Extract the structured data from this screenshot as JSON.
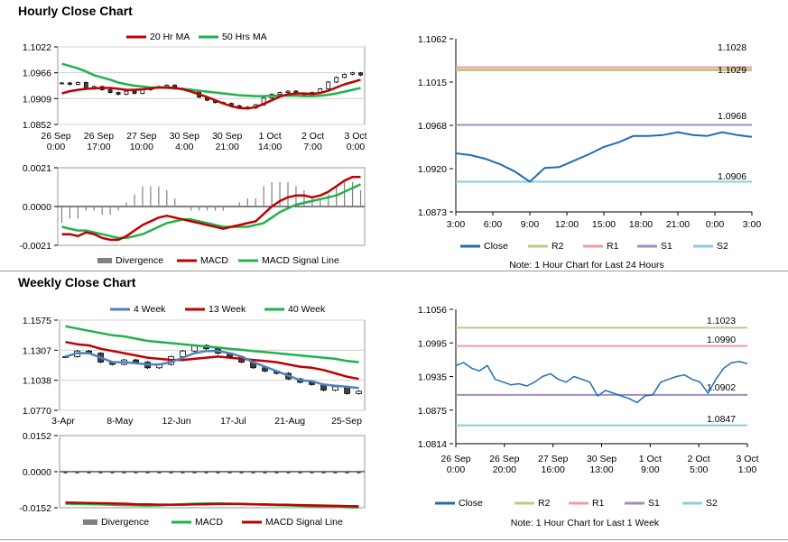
{
  "hourly_title": "Hourly Close Chart",
  "weekly_title": "Weekly Close Chart",
  "colors": {
    "ma20": "#c00000",
    "ma50": "#22b14c",
    "divergence": "#808080",
    "close": "#1f6eb4",
    "r2": "#c9c48a",
    "r1": "#e8a0a0",
    "s1": "#a28cc0",
    "s2": "#8ecbe0",
    "w4": "#4f81bd",
    "w13": "#c00000",
    "w40": "#22b14c"
  },
  "chart_data": [
    {
      "id": "hourly_price",
      "type": "candlestick",
      "legend": [
        "20 Hr MA",
        "50 Hrs MA"
      ],
      "y_ticks": [
        "1.1022",
        "1.0966",
        "1.0909",
        "1.0852"
      ],
      "ylim": [
        1.0852,
        1.1022
      ],
      "x_ticks": [
        "26 Sep\n0:00",
        "26 Sep\n17:00",
        "27 Sep\n10:00",
        "30 Sep\n4:00",
        "30 Sep\n21:00",
        "1 Oct\n14:00",
        "2 Oct\n7:00",
        "3 Oct\n0:00"
      ],
      "close": [
        1.0943,
        1.094,
        1.0944,
        1.093,
        1.0935,
        1.0928,
        1.0922,
        1.0918,
        1.0925,
        1.092,
        1.0928,
        1.0933,
        1.0935,
        1.0938,
        1.093,
        1.0929,
        1.0925,
        1.0912,
        1.0905,
        1.09,
        1.0898,
        1.0893,
        1.089,
        1.0888,
        1.0895,
        1.091,
        1.0918,
        1.0922,
        1.0925,
        1.092,
        1.0916,
        1.0922,
        1.093,
        1.0945,
        1.0955,
        1.0962,
        1.0965,
        1.096
      ],
      "ma20": [
        1.092,
        1.0925,
        1.0928,
        1.093,
        1.0931,
        1.0932,
        1.0932,
        1.093,
        1.0928,
        1.0928,
        1.0929,
        1.0931,
        1.0933,
        1.0933,
        1.0932,
        1.0929,
        1.0924,
        1.0918,
        1.0912,
        1.0905,
        1.0898,
        1.0892,
        1.0888,
        1.0887,
        1.089,
        1.0897,
        1.0905,
        1.0913,
        1.0918,
        1.092,
        1.092,
        1.0919,
        1.0921,
        1.0926,
        1.0933,
        1.094,
        1.0945,
        1.095
      ],
      "ma50": [
        1.0985,
        1.098,
        1.0975,
        1.0968,
        1.096,
        1.0955,
        1.095,
        1.0944,
        1.094,
        1.0937,
        1.0935,
        1.0933,
        1.0933,
        1.0932,
        1.0931,
        1.093,
        1.0928,
        1.0926,
        1.0924,
        1.0922,
        1.092,
        1.0918,
        1.0916,
        1.0915,
        1.0914,
        1.0914,
        1.0915,
        1.0915,
        1.0915,
        1.0915,
        1.0914,
        1.0914,
        1.0915,
        1.0917,
        1.092,
        1.0924,
        1.0928,
        1.0932
      ]
    },
    {
      "id": "hourly_macd",
      "type": "macd",
      "legend": [
        "Divergence",
        "MACD",
        "MACD Signal Line"
      ],
      "y_ticks": [
        "0.0021",
        "0.0000",
        "-0.0021"
      ],
      "ylim": [
        -0.0021,
        0.0021
      ],
      "macd": [
        -0.0015,
        -0.0015,
        -0.0016,
        -0.0014,
        -0.0015,
        -0.0017,
        -0.0018,
        -0.0018,
        -0.0016,
        -0.0013,
        -0.001,
        -0.0008,
        -0.0006,
        -0.0005,
        -0.0006,
        -0.0007,
        -0.0008,
        -0.0009,
        -0.001,
        -0.0011,
        -0.0012,
        -0.0011,
        -0.001,
        -0.0009,
        -0.0008,
        -0.0004,
        0.0,
        0.0003,
        0.0005,
        0.0006,
        0.0006,
        0.0005,
        0.0006,
        0.0008,
        0.0011,
        0.0014,
        0.0016,
        0.0016
      ],
      "signal": [
        -0.0011,
        -0.0012,
        -0.0013,
        -0.0013,
        -0.0014,
        -0.0015,
        -0.0016,
        -0.0017,
        -0.0017,
        -0.0016,
        -0.0015,
        -0.0013,
        -0.0011,
        -0.0009,
        -0.0008,
        -0.0007,
        -0.0007,
        -0.0008,
        -0.0009,
        -0.001,
        -0.0011,
        -0.0011,
        -0.0011,
        -0.0011,
        -0.001,
        -0.0009,
        -0.0006,
        -0.0003,
        -0.0001,
        0.0001,
        0.0002,
        0.0003,
        0.0004,
        0.0005,
        0.0006,
        0.0008,
        0.001,
        0.0012
      ]
    },
    {
      "id": "hourly_levels",
      "type": "line",
      "y_ticks": [
        "1.1062",
        "1.1015",
        "1.0968",
        "1.0920",
        "1.0873"
      ],
      "ylim": [
        1.0873,
        1.1062
      ],
      "x_ticks": [
        "3:00",
        "6:00",
        "9:00",
        "12:00",
        "15:00",
        "18:00",
        "21:00",
        "0:00",
        "3:00"
      ],
      "legend": [
        "Close",
        "R2",
        "R1",
        "S1",
        "S2"
      ],
      "levels": {
        "r2": 1.1028,
        "r1": 1.1029,
        "s1": 1.0968,
        "s2": 1.0906
      },
      "level_labels": {
        "r2": "1.1028",
        "r1": "1.1029",
        "s1": "1.0968",
        "s2": "1.0906"
      },
      "note": "Note: 1 Hour Chart for Last 24 Hours",
      "close": [
        1.0937,
        1.0935,
        1.0931,
        1.0925,
        1.0917,
        1.0906,
        1.0921,
        1.0922,
        1.0929,
        1.0936,
        1.0944,
        1.0949,
        1.0956,
        1.0956,
        1.0957,
        1.096,
        1.0957,
        1.0956,
        1.096,
        1.0957,
        1.0955
      ]
    },
    {
      "id": "weekly_price",
      "type": "candlestick",
      "legend": [
        "4 Week",
        "13 Week",
        "40 Week"
      ],
      "y_ticks": [
        "1.1575",
        "1.1307",
        "1.1038",
        "1.0770"
      ],
      "ylim": [
        1.077,
        1.1575
      ],
      "x_ticks": [
        "3-Apr",
        "8-May",
        "12-Jun",
        "17-Jul",
        "21-Aug",
        "25-Sep"
      ],
      "close": [
        1.125,
        1.13,
        1.128,
        1.12,
        1.118,
        1.122,
        1.12,
        1.115,
        1.118,
        1.125,
        1.13,
        1.135,
        1.132,
        1.128,
        1.125,
        1.12,
        1.115,
        1.112,
        1.11,
        1.105,
        1.102,
        1.1,
        1.095,
        1.098,
        1.092,
        1.094
      ],
      "w4": [
        1.125,
        1.128,
        1.128,
        1.124,
        1.12,
        1.12,
        1.119,
        1.118,
        1.118,
        1.12,
        1.124,
        1.128,
        1.13,
        1.13,
        1.128,
        1.125,
        1.12,
        1.116,
        1.112,
        1.108,
        1.104,
        1.103,
        1.1,
        1.099,
        1.098,
        1.097
      ],
      "w13": [
        1.138,
        1.136,
        1.135,
        1.132,
        1.13,
        1.128,
        1.126,
        1.124,
        1.123,
        1.122,
        1.122,
        1.123,
        1.124,
        1.125,
        1.124,
        1.123,
        1.122,
        1.121,
        1.12,
        1.118,
        1.116,
        1.115,
        1.113,
        1.11,
        1.107,
        1.105
      ],
      "w40": [
        1.152,
        1.15,
        1.148,
        1.146,
        1.144,
        1.143,
        1.141,
        1.139,
        1.138,
        1.137,
        1.136,
        1.135,
        1.134,
        1.133,
        1.132,
        1.131,
        1.13,
        1.129,
        1.128,
        1.127,
        1.126,
        1.125,
        1.124,
        1.123,
        1.121,
        1.12
      ]
    },
    {
      "id": "weekly_macd",
      "type": "macd",
      "legend": [
        "Divergence",
        "MACD",
        "MACD Signal Line"
      ],
      "y_ticks": [
        "0.0152",
        "0.0000",
        "-0.0152"
      ],
      "ylim": [
        -0.0152,
        0.0152
      ],
      "macd": [
        -0.0135,
        -0.0136,
        -0.0137,
        -0.0138,
        -0.014,
        -0.0141,
        -0.0142,
        -0.0143,
        -0.0142,
        -0.014,
        -0.0137,
        -0.0135,
        -0.0134,
        -0.0134,
        -0.0135,
        -0.0136,
        -0.0138,
        -0.014,
        -0.0141,
        -0.0142,
        -0.0144,
        -0.0145,
        -0.0147,
        -0.0148,
        -0.015,
        -0.0151
      ],
      "signal": [
        -0.013,
        -0.0131,
        -0.0132,
        -0.0133,
        -0.0134,
        -0.0135,
        -0.0137,
        -0.0138,
        -0.0139,
        -0.0139,
        -0.0139,
        -0.0138,
        -0.0137,
        -0.0136,
        -0.0136,
        -0.0136,
        -0.0137,
        -0.0138,
        -0.0139,
        -0.014,
        -0.0141,
        -0.0142,
        -0.0143,
        -0.0144,
        -0.0145,
        -0.0146
      ]
    },
    {
      "id": "weekly_levels",
      "type": "line",
      "y_ticks": [
        "1.1056",
        "1.0995",
        "1.0935",
        "1.0875",
        "1.0814"
      ],
      "ylim": [
        1.0814,
        1.1056
      ],
      "x_ticks": [
        "26 Sep\n0:00",
        "26 Sep\n20:00",
        "27 Sep\n16:00",
        "30 Sep\n13:00",
        "1 Oct\n9:00",
        "2 Oct\n5:00",
        "3 Oct\n1:00"
      ],
      "legend": [
        "Close",
        "R2",
        "R1",
        "S1",
        "S2"
      ],
      "levels": {
        "r2": 1.1023,
        "r1": 1.099,
        "s1": 1.0902,
        "s2": 1.0847
      },
      "level_labels": {
        "r2": "1.1023",
        "r1": "1.0990",
        "s1": "1.0902",
        "s2": "1.0847"
      },
      "note": "Note: 1 Hour Chart for Last 1 Week",
      "close": [
        1.0955,
        1.096,
        1.095,
        1.0945,
        1.0955,
        1.093,
        1.0925,
        1.092,
        1.0922,
        1.0918,
        1.0925,
        1.0935,
        1.094,
        1.093,
        1.0925,
        1.0935,
        1.093,
        1.0925,
        1.09,
        1.091,
        1.0905,
        1.09,
        1.0895,
        1.0888,
        1.09,
        1.0902,
        1.0925,
        1.093,
        1.0935,
        1.0938,
        1.093,
        1.0925,
        1.0905,
        1.093,
        1.095,
        1.096,
        1.0962,
        1.0958
      ]
    }
  ]
}
